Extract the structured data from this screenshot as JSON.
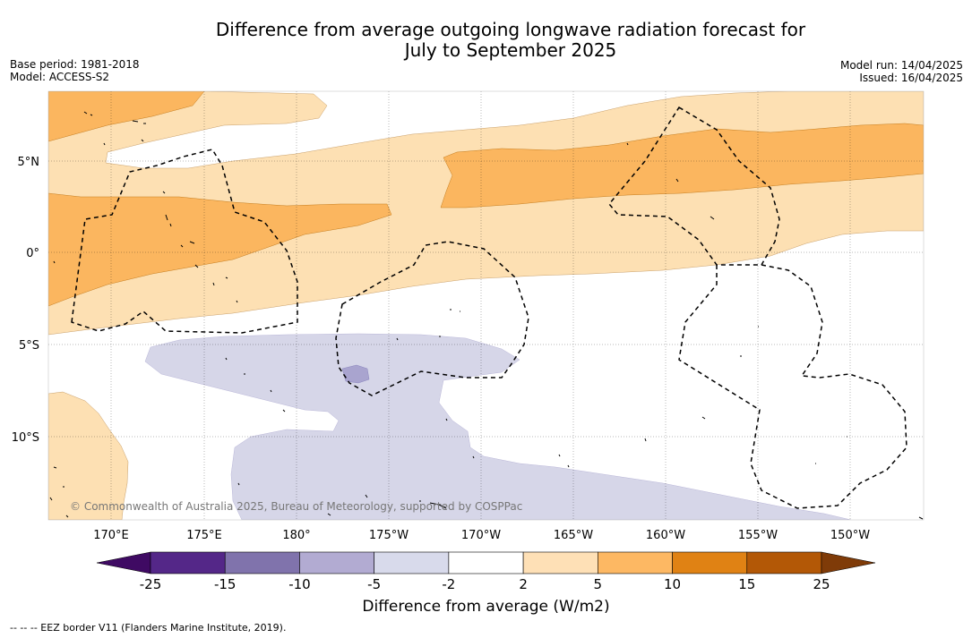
{
  "title": {
    "line1": "Difference from average outgoing longwave radiation forecast for",
    "line2": "July to September 2025"
  },
  "meta_left": {
    "base_period": "Base period: 1981-2018",
    "model": "Model: ACCESS-S2"
  },
  "meta_right": {
    "model_run": "Model run: 14/04/2025",
    "issued": "Issued: 16/04/2025"
  },
  "map": {
    "lon_labels": [
      "170°E",
      "175°E",
      "180°",
      "175°W",
      "170°W",
      "165°W",
      "160°W",
      "155°W",
      "150°W"
    ],
    "lat_labels": [
      "5°N",
      "0°",
      "5°S",
      "10°S"
    ],
    "attribution": "© Commonwealth of Australia 2025, Bureau of Meteorology, supported by COSPPac",
    "colors": {
      "minus5_to_minus2": "#d6d6e8",
      "minus10_to_minus5": "#a9a4cf",
      "plus2_to_plus5": "#fde0b3",
      "plus5_to_plus10": "#fbb65f"
    }
  },
  "colorbar": {
    "ticks": [
      "-25",
      "-15",
      "-10",
      "-5",
      "-2",
      "2",
      "5",
      "10",
      "15",
      "25"
    ],
    "colors": [
      "#3f0a63",
      "#542788",
      "#8073ac",
      "#b2abd2",
      "#d8daeb",
      "#ffffff",
      "#fee0b6",
      "#fdb863",
      "#e08214",
      "#b35806",
      "#7f3b08"
    ],
    "label": "Difference from average (W/m2)"
  },
  "legend": {
    "eez": "--  --  -- EEZ border V11 (Flanders Marine Institute, 2019)."
  }
}
